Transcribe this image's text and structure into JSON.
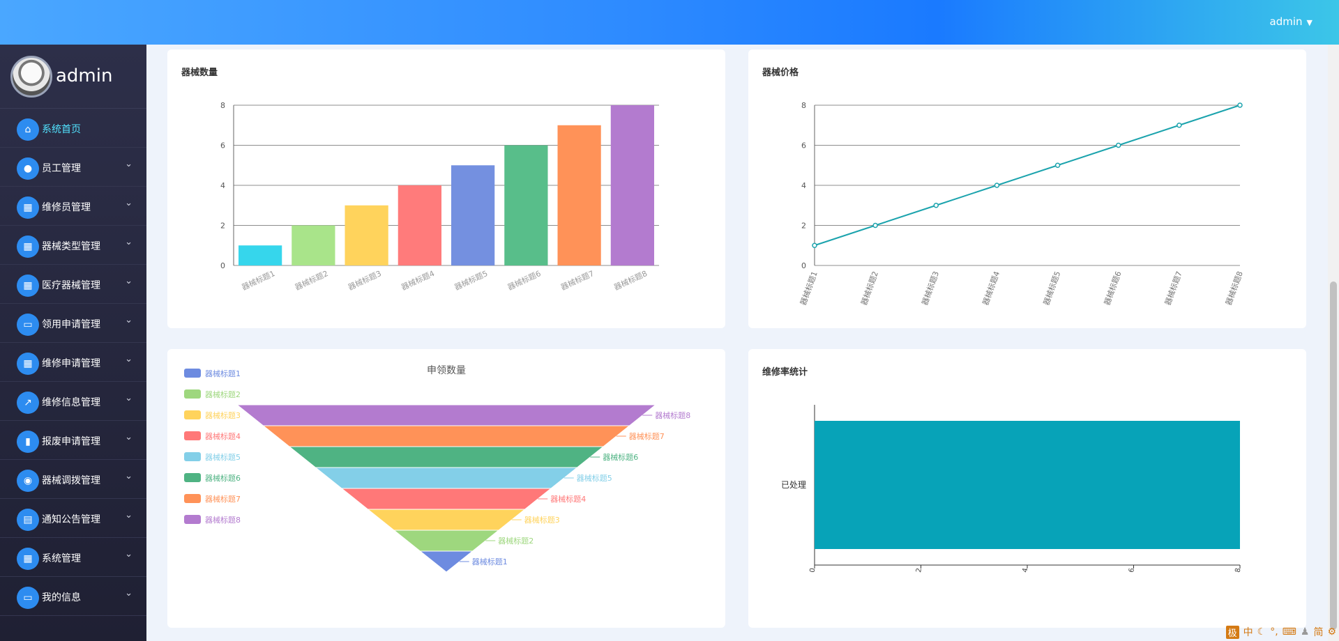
{
  "header": {
    "user_label": "admin",
    "caret": "▼"
  },
  "sidebar": {
    "username": "admin",
    "items": [
      {
        "label": "系统首页",
        "icon": "home-icon",
        "glyph": "⌂",
        "active": true
      },
      {
        "label": "员工管理",
        "icon": "lightbulb-icon",
        "glyph": "●"
      },
      {
        "label": "维修员管理",
        "icon": "grid-icon",
        "glyph": "▦"
      },
      {
        "label": "器械类型管理",
        "icon": "grid-icon",
        "glyph": "▦"
      },
      {
        "label": "医疗器械管理",
        "icon": "grid-icon",
        "glyph": "▦"
      },
      {
        "label": "领用申请管理",
        "icon": "ticket-icon",
        "glyph": "▭"
      },
      {
        "label": "维修申请管理",
        "icon": "grid-icon",
        "glyph": "▦"
      },
      {
        "label": "维修信息管理",
        "icon": "trend-chart-icon",
        "glyph": "↗"
      },
      {
        "label": "报废申请管理",
        "icon": "bar-chart-icon",
        "glyph": "▮"
      },
      {
        "label": "器械调拨管理",
        "icon": "person-icon",
        "glyph": "◉"
      },
      {
        "label": "通知公告管理",
        "icon": "document-icon",
        "glyph": "▤"
      },
      {
        "label": "系统管理",
        "icon": "grid-icon",
        "glyph": "▦"
      },
      {
        "label": "我的信息",
        "icon": "card-icon",
        "glyph": "▭"
      }
    ],
    "chevron": "⌄"
  },
  "cards": {
    "bar_title": "器械数量",
    "line_title": "器械价格",
    "funnel_title": "申领数量",
    "hbar_title": "维修率统计"
  },
  "chart_data": [
    {
      "type": "bar",
      "title": "器械数量",
      "categories": [
        "器械标题1",
        "器械标题2",
        "器械标题3",
        "器械标题4",
        "器械标题5",
        "器械标题6",
        "器械标题7",
        "器械标题8"
      ],
      "values": [
        1,
        2,
        3,
        4,
        5,
        6,
        7,
        8
      ],
      "ylim": [
        0,
        8
      ],
      "yticks": [
        0,
        2,
        4,
        6,
        8
      ],
      "colors": [
        "#36d6ec",
        "#a9e48a",
        "#ffd35c",
        "#ff7b7b",
        "#7490e0",
        "#58be8a",
        "#ff9258",
        "#b37bcf"
      ],
      "grid": true
    },
    {
      "type": "line",
      "title": "器械价格",
      "categories": [
        "器械标题1",
        "器械标题2",
        "器械标题3",
        "器械标题4",
        "器械标题5",
        "器械标题6",
        "器械标题7",
        "器械标题8"
      ],
      "values": [
        1,
        2,
        3,
        4,
        5,
        6,
        7,
        8
      ],
      "ylim": [
        0,
        8
      ],
      "yticks": [
        0,
        2,
        4,
        6,
        8
      ],
      "color": "#1ba3ad",
      "grid": true
    },
    {
      "type": "funnel",
      "title": "申领数量",
      "legend": "top-left",
      "categories": [
        "器械标题1",
        "器械标题2",
        "器械标题3",
        "器械标题4",
        "器械标题5",
        "器械标题6",
        "器械标题7",
        "器械标题8"
      ],
      "values": [
        1,
        2,
        3,
        4,
        5,
        6,
        7,
        8
      ],
      "colors": [
        "#6d8be0",
        "#9ed77e",
        "#ffd35c",
        "#ff7878",
        "#83cfe8",
        "#4fb383",
        "#ff9258",
        "#b37bcf"
      ]
    },
    {
      "type": "bar",
      "orientation": "horizontal",
      "title": "维修率统计",
      "categories": [
        "已处理"
      ],
      "values": [
        8
      ],
      "xlim": [
        0,
        8
      ],
      "xticks": [
        0,
        2,
        4,
        6,
        8
      ],
      "color": "#07a3b8"
    }
  ],
  "ime": {
    "logo": "极",
    "mode": "中",
    "simplified": "简"
  }
}
